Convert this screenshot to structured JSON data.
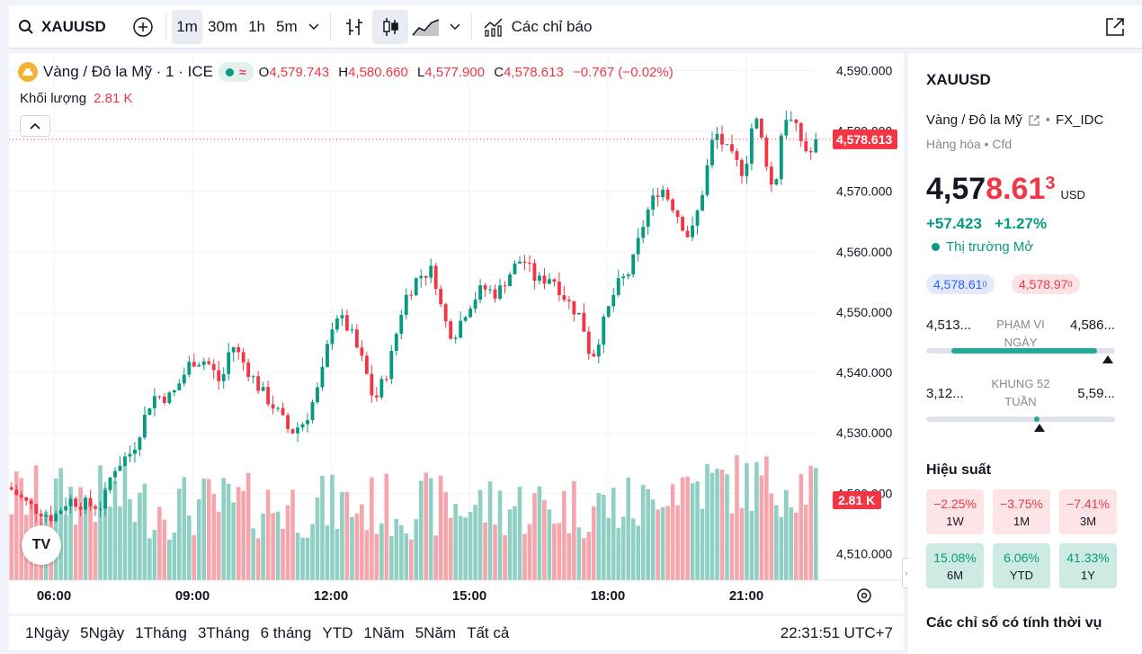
{
  "toolbar": {
    "symbol": "XAUUSD",
    "intervals": [
      "1m",
      "30m",
      "1h",
      "5m"
    ],
    "active_interval": "1m",
    "indicators_label": "Các chỉ báo"
  },
  "legend": {
    "title": "Vàng / Đô la Mỹ · 1 · ICE",
    "open_key": "O",
    "open": "4,579.743",
    "high_key": "H",
    "high": "4,580.660",
    "low_key": "L",
    "low": "4,577.900",
    "close_key": "C",
    "close": "4,578.613",
    "change": "−0.767 (−0.02%)",
    "volume_label": "Khối lượng",
    "volume_value": "2.81 K"
  },
  "chart_data": {
    "type": "candlestick",
    "x_ticks": [
      "06:00",
      "09:00",
      "12:00",
      "15:00",
      "18:00",
      "21:00"
    ],
    "y_ticks": [
      "4,590.000",
      "4,580.000",
      "4,570.000",
      "4,560.000",
      "4,550.000",
      "4,540.000",
      "4,530.000",
      "4,520.000",
      "4,510.000"
    ],
    "ylim": [
      4505.6,
      4592.9
    ],
    "last_price_label": "4,578.613",
    "last_price": 4578.613,
    "last_volume_label": "2.81 K",
    "price_path": [
      [
        0,
        4521
      ],
      [
        4,
        4518
      ],
      [
        9,
        4516
      ],
      [
        12,
        4519
      ],
      [
        16,
        4518
      ],
      [
        19,
        4518
      ],
      [
        21,
        4524
      ],
      [
        25,
        4527
      ],
      [
        29,
        4536
      ],
      [
        33,
        4536
      ],
      [
        37,
        4542
      ],
      [
        40,
        4542
      ],
      [
        43,
        4538
      ],
      [
        45,
        4545
      ],
      [
        48,
        4541
      ],
      [
        51,
        4537
      ],
      [
        54,
        4534
      ],
      [
        57,
        4530
      ],
      [
        60,
        4532
      ],
      [
        63,
        4538
      ],
      [
        66,
        4550
      ],
      [
        69,
        4547
      ],
      [
        72,
        4541
      ],
      [
        74,
        4535
      ],
      [
        77,
        4541
      ],
      [
        80,
        4552
      ],
      [
        83,
        4556
      ],
      [
        86,
        4557
      ],
      [
        88,
        4549
      ],
      [
        90,
        4546
      ],
      [
        93,
        4551
      ],
      [
        96,
        4554
      ],
      [
        99,
        4553
      ],
      [
        101,
        4556
      ],
      [
        104,
        4559
      ],
      [
        107,
        4555
      ],
      [
        110,
        4556
      ],
      [
        113,
        4552
      ],
      [
        116,
        4549
      ],
      [
        118,
        4542
      ],
      [
        120,
        4547
      ],
      [
        123,
        4554
      ],
      [
        126,
        4557
      ],
      [
        129,
        4566
      ],
      [
        132,
        4571
      ],
      [
        135,
        4567
      ],
      [
        138,
        4562
      ],
      [
        140,
        4568
      ],
      [
        143,
        4580
      ],
      [
        146,
        4576
      ],
      [
        149,
        4573
      ],
      [
        151,
        4583
      ],
      [
        153,
        4577
      ],
      [
        155,
        4569
      ],
      [
        157,
        4583
      ],
      [
        159,
        4581
      ],
      [
        162,
        4576
      ],
      [
        165,
        4578.6
      ]
    ]
  },
  "timeframes": [
    "1Ngày",
    "5Ngày",
    "1Tháng",
    "3Tháng",
    "6 tháng",
    "YTD",
    "1Năm",
    "5Năm",
    "Tất cả"
  ],
  "clock": "22:31:51 UTC+7",
  "side": {
    "symbol": "XAUUSD",
    "description": "Vàng / Đô la Mỹ",
    "exchange": "FX_IDC",
    "category": "Hàng hóa",
    "type": "Cfd",
    "price_main": "4,57",
    "price_highlight": "8.61",
    "price_sup": "3",
    "currency": "USD",
    "change_abs": "+57.423",
    "change_pct": "+1.27%",
    "market_status": "Thị trường Mở",
    "bid_main": "4,578.61",
    "bid_sup": "0",
    "ask_main": "4,578.97",
    "ask_sup": "0",
    "day_range": {
      "low": "4,513...",
      "label": "PHẠM VI NGÀY",
      "high": "4,586...",
      "marker": 0.96
    },
    "week52_range": {
      "low": "3,12...",
      "label": "KHUNG 52 TUẦN",
      "high": "5,59...",
      "marker": 0.6
    },
    "performance_title": "Hiệu suất",
    "performance": [
      {
        "value": "−2.25%",
        "label": "1W",
        "sign": "neg"
      },
      {
        "value": "−3.75%",
        "label": "1M",
        "sign": "neg"
      },
      {
        "value": "−7.41%",
        "label": "3M",
        "sign": "neg"
      },
      {
        "value": "15.08%",
        "label": "6M",
        "sign": "pos"
      },
      {
        "value": "6.06%",
        "label": "YTD",
        "sign": "pos"
      },
      {
        "value": "41.33%",
        "label": "1Y",
        "sign": "pos"
      }
    ],
    "seasonal_title": "Các chỉ số có tính thời vụ"
  },
  "colors": {
    "up": "#089981",
    "down": "#f23645",
    "up_vol": "#8fcfc4",
    "down_vol": "#f5a6ad"
  },
  "tv_logo": "TV"
}
